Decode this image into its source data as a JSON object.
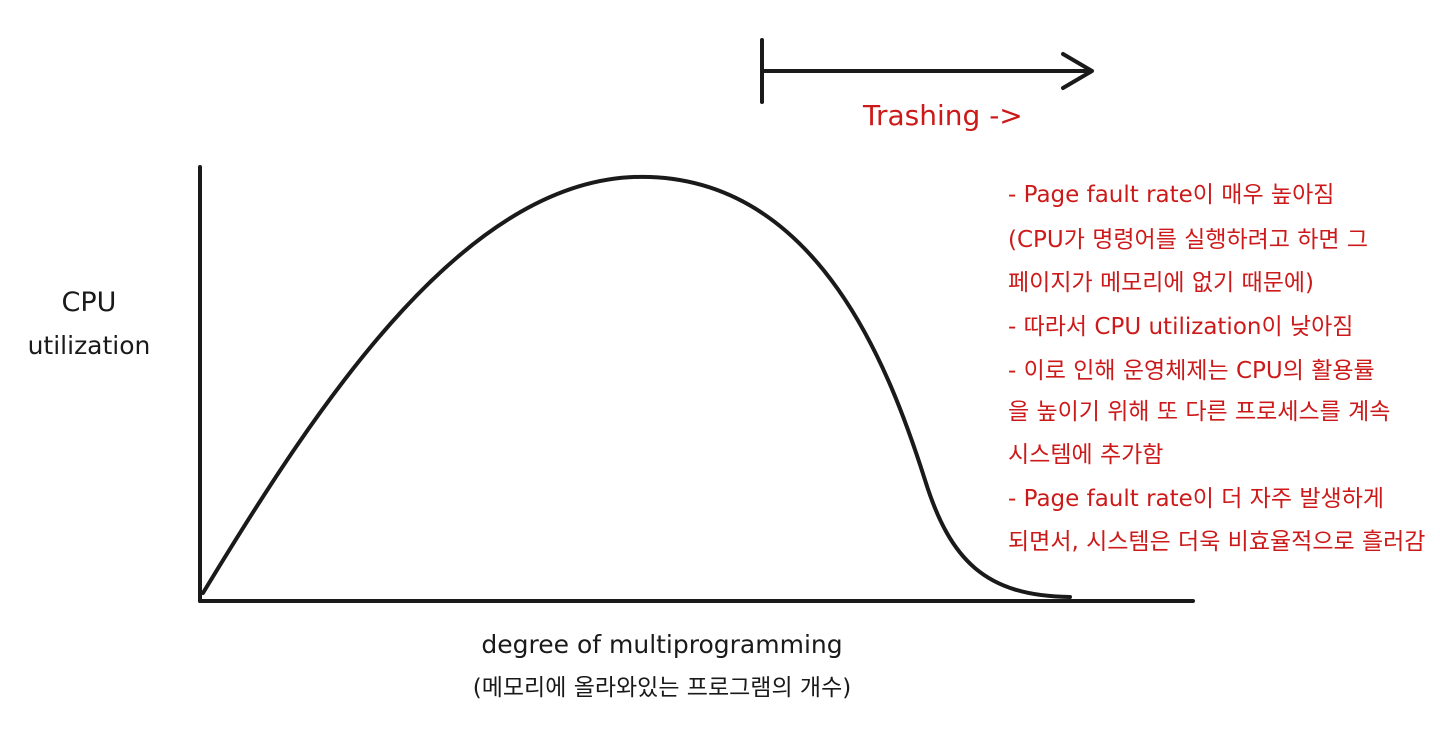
{
  "y_label": [
    "CPU",
    "utilization"
  ],
  "x_label": [
    "degree of multiprogramming",
    "(메모리에 올라와있는 프로그램의 개수)"
  ],
  "thrashing_label": "Trashing ->",
  "notes": [
    "- Page fault rate이 매우 높아짐",
    "(CPU가 명령어를 실행하려고 하면 그",
    "페이지가 메모리에 없기 때문에)",
    "- 따라서 CPU utilization이 낮아짐",
    "- 이로 인해 운영체제는 CPU의 활용률",
    "을 높이기 위해 또 다른 프로세스를 계속",
    "시스템에 추가함",
    "- Page fault rate이 더 자주 발생하게",
    "되면서, 시스템은 더욱 비효율적으로 흘러감"
  ],
  "colors": {
    "ink": "#1a1a1a",
    "annotation": "#cc1a1a"
  }
}
